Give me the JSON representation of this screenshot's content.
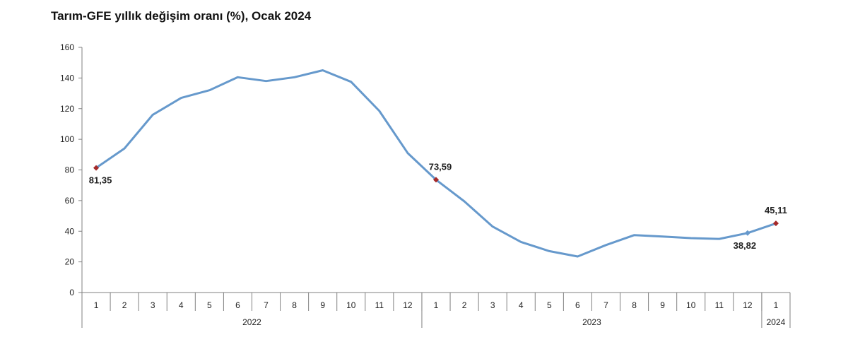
{
  "chart_data": {
    "type": "line",
    "title": "Tarım-GFE yıllık değişim oranı (%), Ocak 2024",
    "xlabel": "",
    "ylabel": "",
    "ylim": [
      0,
      160
    ],
    "yticks": [
      "0",
      "20",
      "40",
      "60",
      "80",
      "100",
      "120",
      "140",
      "160"
    ],
    "categories": [
      "1",
      "2",
      "3",
      "4",
      "5",
      "6",
      "7",
      "8",
      "9",
      "10",
      "11",
      "12",
      "1",
      "2",
      "3",
      "4",
      "5",
      "6",
      "7",
      "8",
      "9",
      "10",
      "11",
      "12",
      "1"
    ],
    "year_groups": [
      {
        "label": "2022",
        "count": 12
      },
      {
        "label": "2023",
        "count": 12
      },
      {
        "label": "2024",
        "count": 1
      }
    ],
    "series": [
      {
        "values": [
          81.35,
          94.0,
          116.0,
          127.0,
          132.0,
          140.5,
          138.0,
          140.5,
          145.0,
          137.5,
          118.5,
          91.0,
          73.59,
          59.5,
          43.0,
          33.0,
          27.0,
          23.5,
          31.0,
          37.5,
          36.5,
          35.5,
          35.0,
          38.82,
          45.11
        ],
        "color": "#6699CC"
      }
    ],
    "annotations": [
      {
        "index": 0,
        "text": "81,35",
        "position": "below"
      },
      {
        "index": 12,
        "text": "73,59",
        "position": "above"
      },
      {
        "index": 23,
        "text": "38,82",
        "position": "below"
      },
      {
        "index": 24,
        "text": "45,11",
        "position": "above"
      }
    ],
    "marker_color": "#A52A2A",
    "grid": false,
    "legend": "none"
  }
}
